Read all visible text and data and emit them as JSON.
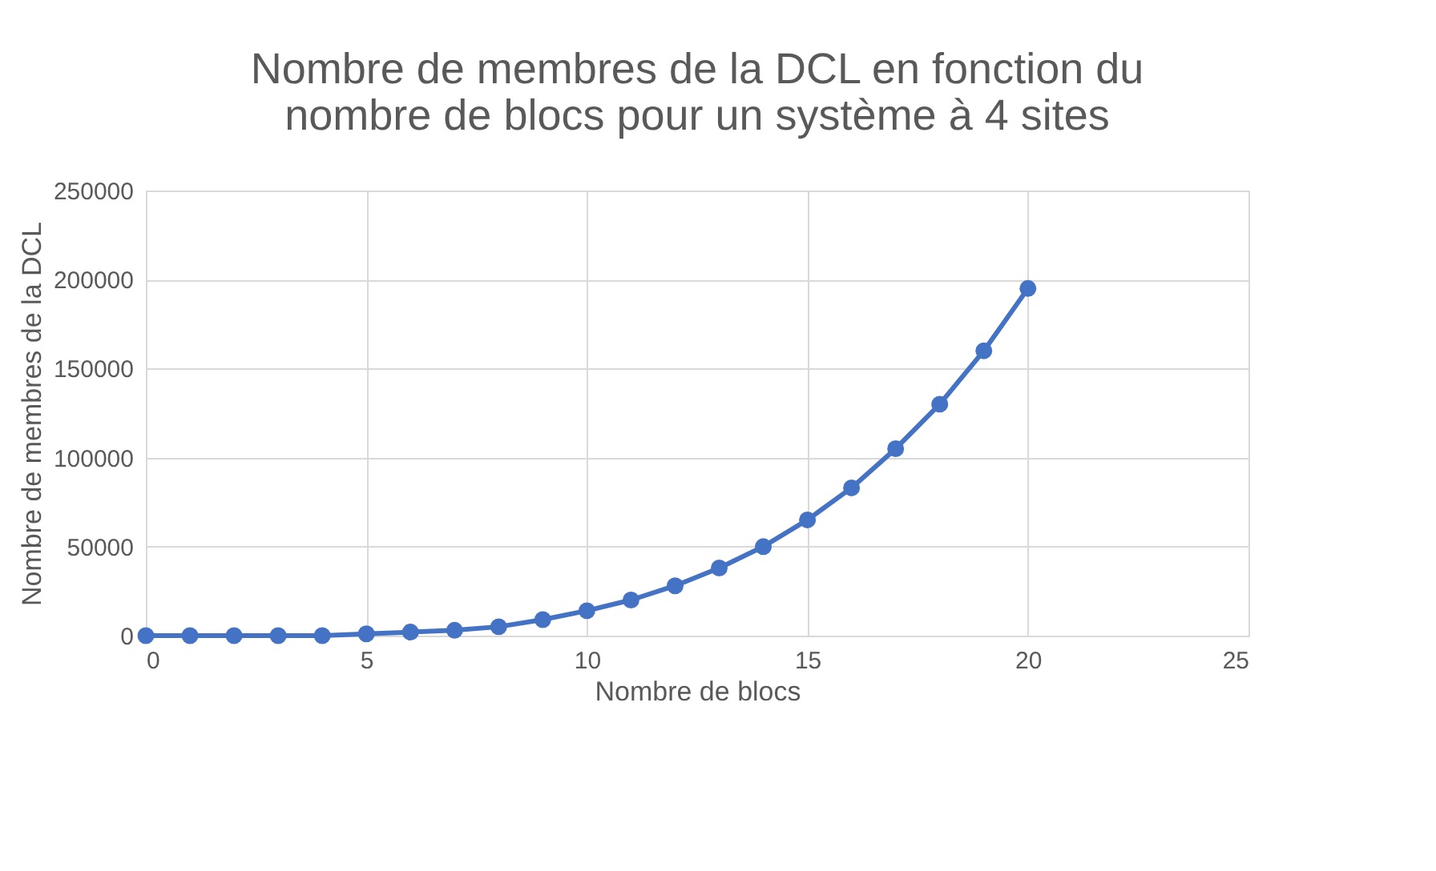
{
  "chart_data": {
    "type": "line",
    "title": [
      "Nombre de membres de la DCL en fonction du",
      "nombre de blocs pour un système à 4 sites"
    ],
    "xlabel": "Nombre de blocs",
    "ylabel": "Nombre de membres de la DCL",
    "x": [
      0,
      1,
      2,
      3,
      4,
      5,
      6,
      7,
      8,
      9,
      10,
      11,
      12,
      13,
      14,
      15,
      16,
      17,
      18,
      19,
      20
    ],
    "series": [
      {
        "color": "#4472c4",
        "values": [
          0,
          0,
          0,
          0,
          0,
          1000,
          2000,
          3000,
          5000,
          9000,
          14000,
          20000,
          28000,
          38000,
          50000,
          65000,
          83000,
          105000,
          130000,
          160000,
          195000
        ]
      }
    ],
    "xlim": [
      0,
      25
    ],
    "xticks": [
      0,
      5,
      10,
      15,
      20,
      25
    ],
    "ylim": [
      0,
      250000
    ],
    "yticks": [
      0,
      50000,
      100000,
      150000,
      200000,
      250000
    ],
    "grid": true,
    "marker": "circle",
    "line_style": "solid"
  }
}
